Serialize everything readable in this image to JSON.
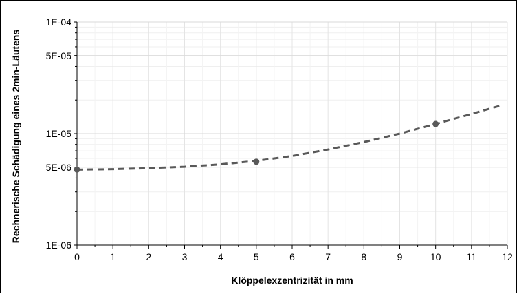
{
  "chart_data": {
    "type": "line",
    "title": "",
    "xlabel": "Klöppelexzentrizität in mm",
    "ylabel": "Rechnerische Schädigung eines 2min-Läutens",
    "xlim": [
      0,
      12
    ],
    "ylim": [
      1e-06,
      0.0001
    ],
    "yscale": "log",
    "x_ticks": [
      0,
      1,
      2,
      3,
      4,
      5,
      6,
      7,
      8,
      9,
      10,
      11,
      12
    ],
    "x_tick_labels": [
      "0",
      "1",
      "2",
      "3",
      "4",
      "5",
      "6",
      "7",
      "8",
      "9",
      "10",
      "11",
      "12"
    ],
    "y_ticks": [
      1e-06,
      5e-06,
      1e-05,
      5e-05,
      0.0001
    ],
    "y_tick_labels": [
      "1E-06",
      "5E-06",
      "1E-05",
      "5E-05",
      "1E-04"
    ],
    "grid": true,
    "legend": "none",
    "series": [
      {
        "style": "dashed",
        "color": "#595959",
        "x": [
          0,
          1,
          2,
          3,
          4,
          5,
          6,
          7,
          8,
          9,
          10,
          11,
          11.8
        ],
        "values": [
          4.75e-06,
          4.8e-06,
          4.9e-06,
          5.05e-06,
          5.3e-06,
          5.7e-06,
          6.3e-06,
          7.2e-06,
          8.4e-06,
          1e-05,
          1.22e-05,
          1.5e-05,
          1.78e-05
        ]
      },
      {
        "style": "markers",
        "color": "#595959",
        "x": [
          0,
          5,
          10
        ],
        "values": [
          4.75e-06,
          5.6e-06,
          1.22e-05
        ]
      }
    ]
  }
}
